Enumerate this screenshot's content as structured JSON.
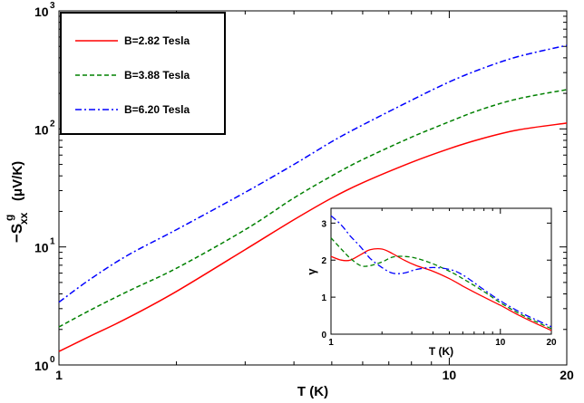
{
  "chart_data": [
    {
      "type": "line",
      "xlabel": "T (K)",
      "ylabel_main": "−S",
      "ylabel_sub": "xx",
      "ylabel_sup": "g",
      "ylabel_units": "(μV/K)",
      "xscale": "log",
      "yscale": "log",
      "xlim": [
        1,
        20
      ],
      "ylim": [
        1,
        1000
      ],
      "xticks": [
        {
          "value": 1,
          "label": "1"
        },
        {
          "value": 10,
          "label": "10"
        },
        {
          "value": 20,
          "label": "20"
        }
      ],
      "yticks": [
        {
          "base": "10",
          "exp": "0",
          "value": 1
        },
        {
          "base": "10",
          "exp": "1",
          "value": 10
        },
        {
          "base": "10",
          "exp": "2",
          "value": 100
        },
        {
          "base": "10",
          "exp": "3",
          "value": 1000
        }
      ],
      "legend_position": "top-left",
      "series": [
        {
          "name": "B=2.82 Tesla",
          "color": "#ff0000",
          "dash": "solid",
          "x": [
            1,
            1.2,
            1.5,
            2,
            3,
            4,
            5,
            6,
            8,
            10,
            12,
            15,
            20
          ],
          "y": [
            1.3,
            1.75,
            2.5,
            4.2,
            9.5,
            17,
            26,
            35,
            52,
            68,
            82,
            98,
            112
          ]
        },
        {
          "name": "B=3.88 Tesla",
          "color": "#008000",
          "dash": "dashed",
          "x": [
            1,
            1.2,
            1.5,
            2,
            3,
            4,
            5,
            6,
            8,
            10,
            12,
            15,
            20
          ],
          "y": [
            2.1,
            2.9,
            4.2,
            6.6,
            14,
            26,
            40,
            55,
            85,
            115,
            145,
            180,
            215
          ]
        },
        {
          "name": "B=6.20 Tesla",
          "color": "#0000ff",
          "dash": "dashdot",
          "x": [
            1,
            1.2,
            1.5,
            2,
            3,
            4,
            5,
            6,
            8,
            10,
            12,
            15,
            20
          ],
          "y": [
            3.4,
            5.3,
            8.5,
            14,
            29,
            50,
            78,
            108,
            175,
            250,
            320,
            410,
            510
          ]
        }
      ]
    },
    {
      "type": "line",
      "xlabel": "T (K)",
      "ylabel": "γ",
      "xscale": "log",
      "yscale": "linear",
      "xlim": [
        1,
        20
      ],
      "ylim": [
        0,
        3.4
      ],
      "xticks": [
        {
          "value": 1,
          "label": "1"
        },
        {
          "value": 10,
          "label": "10"
        },
        {
          "value": 20,
          "label": "20"
        }
      ],
      "yticks": [
        {
          "value": 0,
          "label": "0"
        },
        {
          "value": 1,
          "label": "1"
        },
        {
          "value": 2,
          "label": "2"
        },
        {
          "value": 3,
          "label": "3"
        }
      ],
      "series": [
        {
          "color": "#ff0000",
          "dash": "solid",
          "x": [
            1,
            1.15,
            1.3,
            1.5,
            1.7,
            2,
            2.3,
            2.7,
            3.2,
            4,
            5,
            6,
            8,
            10,
            13,
            16,
            20
          ],
          "y": [
            2.1,
            2.0,
            2.0,
            2.15,
            2.28,
            2.3,
            2.18,
            2.0,
            1.85,
            1.7,
            1.5,
            1.3,
            1.0,
            0.78,
            0.5,
            0.3,
            0.1
          ]
        },
        {
          "color": "#008000",
          "dash": "dashed",
          "x": [
            1,
            1.15,
            1.3,
            1.5,
            1.7,
            2,
            2.3,
            2.7,
            3.2,
            4,
            5,
            6,
            8,
            10,
            13,
            16,
            20
          ],
          "y": [
            2.6,
            2.3,
            2.05,
            1.85,
            1.85,
            1.95,
            2.08,
            2.1,
            2.05,
            1.9,
            1.7,
            1.5,
            1.15,
            0.85,
            0.55,
            0.35,
            0.15
          ]
        },
        {
          "color": "#0000ff",
          "dash": "dashdot",
          "x": [
            1,
            1.15,
            1.3,
            1.5,
            1.7,
            2,
            2.3,
            2.7,
            3.2,
            4,
            5,
            6,
            8,
            10,
            13,
            16,
            20
          ],
          "y": [
            3.2,
            2.95,
            2.65,
            2.35,
            2.05,
            1.8,
            1.65,
            1.65,
            1.75,
            1.8,
            1.75,
            1.6,
            1.2,
            0.9,
            0.6,
            0.4,
            0.2
          ]
        }
      ]
    }
  ]
}
